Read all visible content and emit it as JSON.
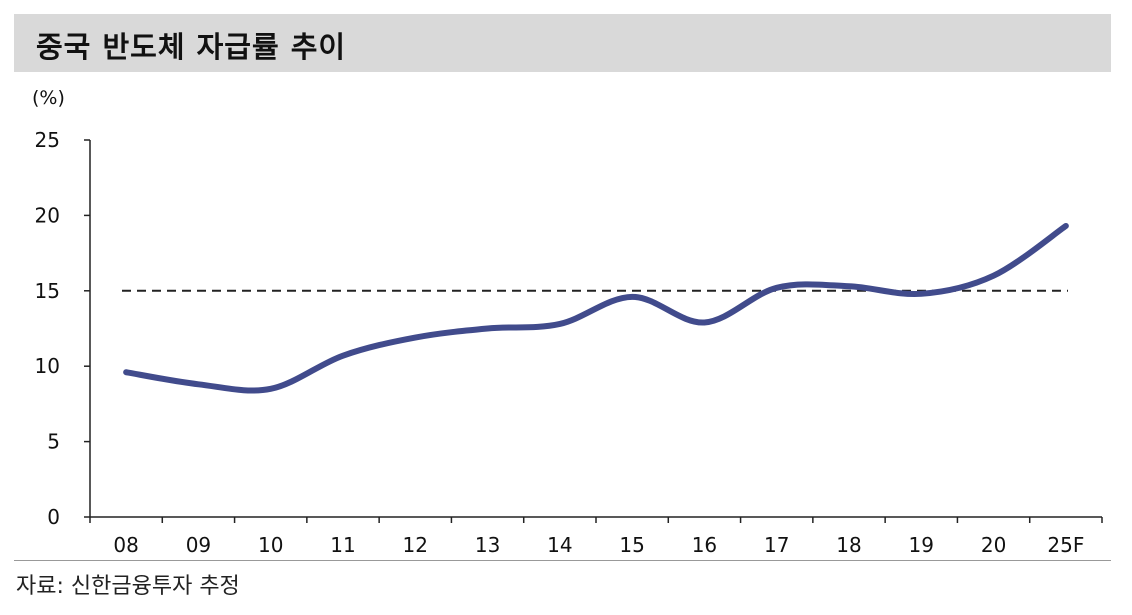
{
  "header": {
    "title": "중국 반도체 자급률 추이"
  },
  "footer": {
    "source": "자료: 신한금융투자 추정"
  },
  "colors": {
    "series": "#414b8c",
    "reference": "#222222",
    "title_bg": "#d9d9d9",
    "axis": "#222222"
  },
  "chart_data": {
    "type": "line",
    "title": "중국 반도체 자급률 추이",
    "unit_label": "(%)",
    "xlabel": "",
    "ylabel": "",
    "categories": [
      "08",
      "09",
      "10",
      "11",
      "12",
      "13",
      "14",
      "15",
      "16",
      "17",
      "18",
      "19",
      "20",
      "25F"
    ],
    "y_ticks": [
      0,
      5,
      10,
      15,
      20,
      25
    ],
    "ylim": [
      0,
      25
    ],
    "series": [
      {
        "values": [
          9.6,
          8.8,
          8.5,
          10.7,
          11.9,
          12.5,
          12.8,
          14.6,
          12.9,
          15.2,
          15.3,
          14.8,
          16.0,
          19.3
        ],
        "color": "#414b8c"
      }
    ],
    "reference_line": {
      "value": 15,
      "style": "dashed"
    },
    "grid": false,
    "legend": "none"
  }
}
